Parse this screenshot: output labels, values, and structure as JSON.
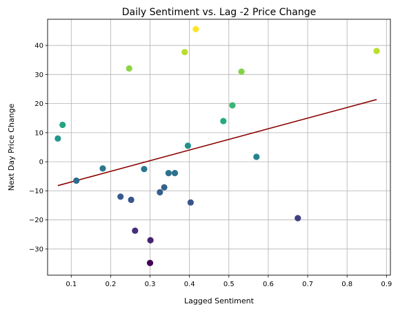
{
  "chart_data": {
    "type": "scatter",
    "title": "Daily Sentiment vs. Lag -2 Price Change",
    "xlabel": "Lagged Sentiment",
    "ylabel": "Next Day Price Change",
    "xlim": [
      0.04,
      0.91
    ],
    "ylim": [
      -39,
      49
    ],
    "x_ticks": [
      0.1,
      0.2,
      0.3,
      0.4,
      0.5,
      0.6,
      0.7,
      0.8,
      0.9
    ],
    "x_tick_labels": [
      "0.1",
      "0.2",
      "0.3",
      "0.4",
      "0.5",
      "0.6",
      "0.7",
      "0.8",
      "0.9"
    ],
    "y_ticks": [
      -30,
      -20,
      -10,
      0,
      10,
      20,
      30,
      40
    ],
    "y_tick_labels": [
      "−30",
      "−20",
      "−10",
      "0",
      "10",
      "20",
      "30",
      "40"
    ],
    "grid": true,
    "colormap": "viridis",
    "color_range": [
      -34.8,
      45.6
    ],
    "trend_color": "#8b0000",
    "trend_line": {
      "x": [
        0.066,
        0.875
      ],
      "y": [
        -8.2,
        21.4
      ]
    },
    "points": [
      {
        "x": 0.066,
        "y": 8.0
      },
      {
        "x": 0.078,
        "y": 12.7
      },
      {
        "x": 0.113,
        "y": -6.5
      },
      {
        "x": 0.18,
        "y": -2.3
      },
      {
        "x": 0.225,
        "y": -12.0
      },
      {
        "x": 0.247,
        "y": 32.1
      },
      {
        "x": 0.252,
        "y": -13.1
      },
      {
        "x": 0.262,
        "y": -23.7
      },
      {
        "x": 0.285,
        "y": -2.5
      },
      {
        "x": 0.3,
        "y": -34.8
      },
      {
        "x": 0.301,
        "y": -27.0
      },
      {
        "x": 0.325,
        "y": -10.5
      },
      {
        "x": 0.336,
        "y": -8.8
      },
      {
        "x": 0.347,
        "y": -3.9
      },
      {
        "x": 0.363,
        "y": -3.9
      },
      {
        "x": 0.388,
        "y": 37.7
      },
      {
        "x": 0.396,
        "y": 5.5
      },
      {
        "x": 0.403,
        "y": -14.0
      },
      {
        "x": 0.416,
        "y": 45.6
      },
      {
        "x": 0.486,
        "y": 14.0
      },
      {
        "x": 0.509,
        "y": 19.4
      },
      {
        "x": 0.532,
        "y": 31.0
      },
      {
        "x": 0.57,
        "y": 1.7
      },
      {
        "x": 0.675,
        "y": -19.4
      },
      {
        "x": 0.875,
        "y": 38.1
      }
    ]
  }
}
